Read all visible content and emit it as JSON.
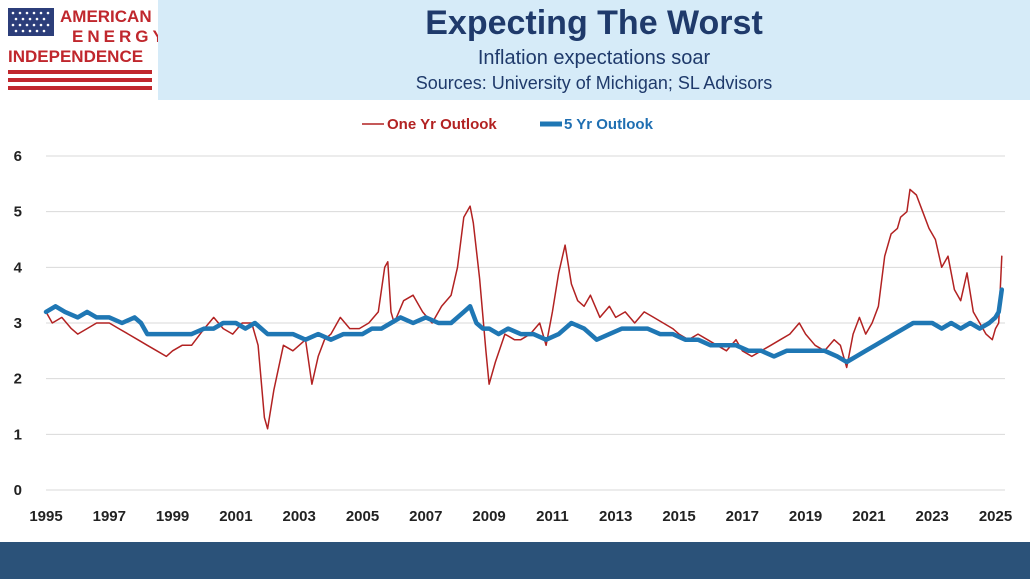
{
  "brand": {
    "line1": "AMERICAN",
    "line2": "ENERGY",
    "line3": "INDEPENDENCE"
  },
  "header": {
    "title": "Expecting The Worst",
    "subtitle": "Inflation expectations soar",
    "sources": "Sources: University of Michigan; SL Advisors"
  },
  "colors": {
    "one_yr": "#b22222",
    "five_yr": "#1f77b4",
    "header_bg": "#d6ebf8",
    "footer_bg": "#2b5279"
  },
  "chart_data": {
    "type": "line",
    "title": "",
    "xlabel": "",
    "ylabel": "",
    "xlim": [
      1995,
      2025.3
    ],
    "ylim": [
      0,
      6
    ],
    "grid": true,
    "legend": "top-center",
    "x_ticks": [
      "1995",
      "1997",
      "1999",
      "2001",
      "2003",
      "2005",
      "2007",
      "2009",
      "2011",
      "2013",
      "2015",
      "2017",
      "2019",
      "2021",
      "2023",
      "2025"
    ],
    "y_ticks": [
      "0",
      "1",
      "2",
      "3",
      "4",
      "5",
      "6"
    ],
    "series": [
      {
        "name": "One Yr Outlook",
        "color": "#b22222",
        "x": [
          1995.0,
          1995.2,
          1995.5,
          1995.8,
          1996.0,
          1996.3,
          1996.6,
          1997.0,
          1997.3,
          1997.6,
          1997.9,
          1998.2,
          1998.5,
          1998.8,
          1999.0,
          1999.3,
          1999.6,
          2000.0,
          2000.3,
          2000.6,
          2000.9,
          2001.2,
          2001.5,
          2001.7,
          2001.9,
          2002.0,
          2002.2,
          2002.5,
          2002.8,
          2003.0,
          2003.2,
          2003.4,
          2003.6,
          2003.8,
          2004.0,
          2004.3,
          2004.6,
          2004.9,
          2005.2,
          2005.5,
          2005.7,
          2005.8,
          2005.9,
          2006.0,
          2006.3,
          2006.6,
          2006.9,
          2007.2,
          2007.5,
          2007.8,
          2008.0,
          2008.2,
          2008.4,
          2008.5,
          2008.7,
          2008.9,
          2009.0,
          2009.2,
          2009.5,
          2009.8,
          2010.0,
          2010.3,
          2010.6,
          2010.8,
          2011.0,
          2011.2,
          2011.4,
          2011.6,
          2011.8,
          2012.0,
          2012.2,
          2012.5,
          2012.8,
          2013.0,
          2013.3,
          2013.6,
          2013.9,
          2014.2,
          2014.5,
          2014.8,
          2015.0,
          2015.3,
          2015.6,
          2015.9,
          2016.2,
          2016.5,
          2016.8,
          2017.0,
          2017.3,
          2017.6,
          2017.9,
          2018.2,
          2018.5,
          2018.8,
          2019.0,
          2019.3,
          2019.6,
          2019.9,
          2020.1,
          2020.3,
          2020.5,
          2020.7,
          2020.9,
          2021.1,
          2021.3,
          2021.5,
          2021.7,
          2021.9,
          2022.0,
          2022.2,
          2022.3,
          2022.5,
          2022.7,
          2022.9,
          2023.1,
          2023.3,
          2023.5,
          2023.7,
          2023.9,
          2024.1,
          2024.3,
          2024.5,
          2024.7,
          2024.9,
          2025.0,
          2025.1,
          2025.2
        ],
        "values": [
          3.2,
          3.0,
          3.1,
          2.9,
          2.8,
          2.9,
          3.0,
          3.0,
          2.9,
          2.8,
          2.7,
          2.6,
          2.5,
          2.4,
          2.5,
          2.6,
          2.6,
          2.9,
          3.1,
          2.9,
          2.8,
          3.0,
          3.0,
          2.6,
          1.3,
          1.1,
          1.8,
          2.6,
          2.5,
          2.6,
          2.7,
          1.9,
          2.4,
          2.7,
          2.8,
          3.1,
          2.9,
          2.9,
          3.0,
          3.2,
          4.0,
          4.1,
          3.2,
          3.0,
          3.4,
          3.5,
          3.2,
          3.0,
          3.3,
          3.5,
          4.0,
          4.9,
          5.1,
          4.8,
          3.8,
          2.5,
          1.9,
          2.3,
          2.8,
          2.7,
          2.7,
          2.8,
          3.0,
          2.6,
          3.2,
          3.9,
          4.4,
          3.7,
          3.4,
          3.3,
          3.5,
          3.1,
          3.3,
          3.1,
          3.2,
          3.0,
          3.2,
          3.1,
          3.0,
          2.9,
          2.8,
          2.7,
          2.8,
          2.7,
          2.6,
          2.5,
          2.7,
          2.5,
          2.4,
          2.5,
          2.6,
          2.7,
          2.8,
          3.0,
          2.8,
          2.6,
          2.5,
          2.7,
          2.6,
          2.2,
          2.8,
          3.1,
          2.8,
          3.0,
          3.3,
          4.2,
          4.6,
          4.7,
          4.9,
          5.0,
          5.4,
          5.3,
          5.0,
          4.7,
          4.5,
          4.0,
          4.2,
          3.6,
          3.4,
          3.9,
          3.2,
          3.0,
          2.8,
          2.7,
          2.9,
          3.0,
          4.2
        ]
      },
      {
        "name": "5 Yr Outlook",
        "color": "#1f77b4",
        "x": [
          1995.0,
          1995.3,
          1995.6,
          1996.0,
          1996.3,
          1996.6,
          1997.0,
          1997.4,
          1997.8,
          1998.0,
          1998.2,
          1998.6,
          1999.0,
          1999.3,
          1999.6,
          2000.0,
          2000.3,
          2000.6,
          2001.0,
          2001.3,
          2001.6,
          2002.0,
          2002.4,
          2002.8,
          2003.2,
          2003.6,
          2004.0,
          2004.4,
          2004.8,
          2005.0,
          2005.3,
          2005.6,
          2005.9,
          2006.2,
          2006.6,
          2007.0,
          2007.4,
          2007.8,
          2008.0,
          2008.2,
          2008.4,
          2008.6,
          2008.8,
          2009.0,
          2009.3,
          2009.6,
          2010.0,
          2010.4,
          2010.8,
          2011.2,
          2011.6,
          2012.0,
          2012.4,
          2012.8,
          2013.2,
          2013.6,
          2014.0,
          2014.4,
          2014.8,
          2015.2,
          2015.6,
          2016.0,
          2016.4,
          2016.8,
          2017.2,
          2017.6,
          2018.0,
          2018.4,
          2018.8,
          2019.2,
          2019.6,
          2020.0,
          2020.3,
          2020.6,
          2020.9,
          2021.2,
          2021.5,
          2021.8,
          2022.1,
          2022.4,
          2022.7,
          2023.0,
          2023.3,
          2023.6,
          2023.9,
          2024.2,
          2024.5,
          2024.8,
          2025.0,
          2025.1,
          2025.2
        ],
        "values": [
          3.2,
          3.3,
          3.2,
          3.1,
          3.2,
          3.1,
          3.1,
          3.0,
          3.1,
          3.0,
          2.8,
          2.8,
          2.8,
          2.8,
          2.8,
          2.9,
          2.9,
          3.0,
          3.0,
          2.9,
          3.0,
          2.8,
          2.8,
          2.8,
          2.7,
          2.8,
          2.7,
          2.8,
          2.8,
          2.8,
          2.9,
          2.9,
          3.0,
          3.1,
          3.0,
          3.1,
          3.0,
          3.0,
          3.1,
          3.2,
          3.3,
          3.0,
          2.9,
          2.9,
          2.8,
          2.9,
          2.8,
          2.8,
          2.7,
          2.8,
          3.0,
          2.9,
          2.7,
          2.8,
          2.9,
          2.9,
          2.9,
          2.8,
          2.8,
          2.7,
          2.7,
          2.6,
          2.6,
          2.6,
          2.5,
          2.5,
          2.4,
          2.5,
          2.5,
          2.5,
          2.5,
          2.4,
          2.3,
          2.4,
          2.5,
          2.6,
          2.7,
          2.8,
          2.9,
          3.0,
          3.0,
          3.0,
          2.9,
          3.0,
          2.9,
          3.0,
          2.9,
          3.0,
          3.1,
          3.2,
          3.6
        ]
      }
    ]
  }
}
